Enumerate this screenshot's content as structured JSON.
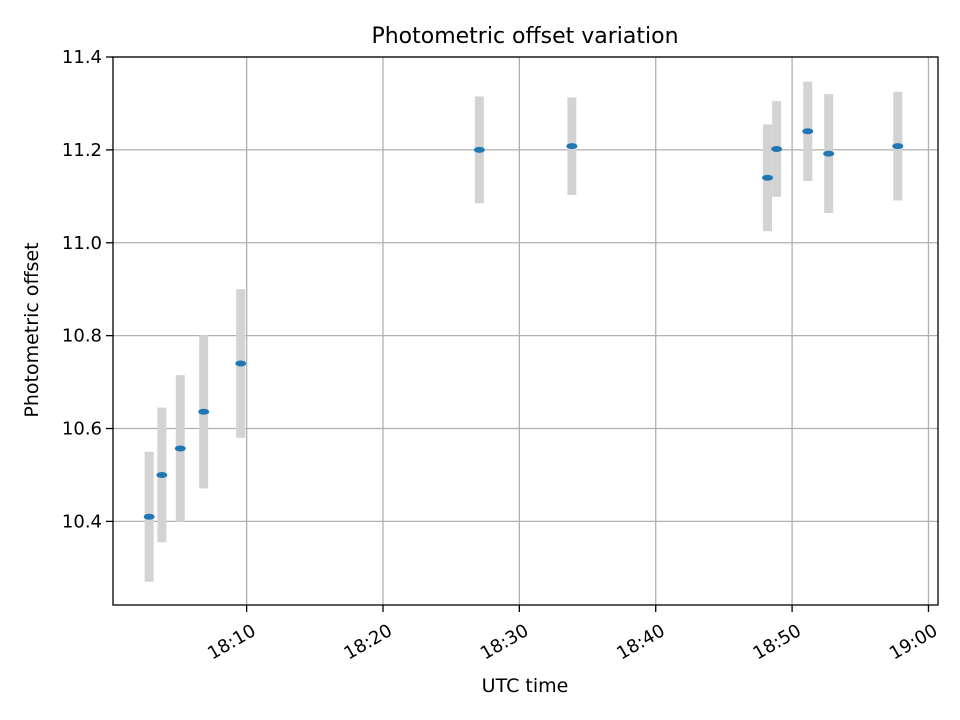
{
  "chart_data": {
    "type": "scatter",
    "title": "Photometric offset variation",
    "xlabel": "UTC time",
    "ylabel": "Photometric offset",
    "xlim": [
      "18:00:12",
      "19:00:42"
    ],
    "ylim": [
      10.22,
      11.4
    ],
    "x_ticks": [
      "18:10",
      "18:20",
      "18:30",
      "18:40",
      "18:50",
      "19:00"
    ],
    "y_ticks": [
      10.4,
      10.6,
      10.8,
      11.0,
      11.2,
      11.4
    ],
    "grid": true,
    "legend": "none",
    "colors": {
      "point": "#1f77b4",
      "errorbar": "#d3d3d3",
      "grid": "#b0b0b0",
      "axis": "#000000"
    },
    "points": [
      {
        "t": "18:02:51",
        "y": 10.41,
        "err": 0.14
      },
      {
        "t": "18:03:47",
        "y": 10.5,
        "err": 0.145
      },
      {
        "t": "18:05:08",
        "y": 10.557,
        "err": 0.158
      },
      {
        "t": "18:06:51",
        "y": 10.636,
        "err": 0.165
      },
      {
        "t": "18:09:34",
        "y": 10.74,
        "err": 0.16
      },
      {
        "t": "18:27:04",
        "y": 11.2,
        "err": 0.115
      },
      {
        "t": "18:33:51",
        "y": 11.208,
        "err": 0.105
      },
      {
        "t": "18:48:12",
        "y": 11.14,
        "err": 0.115
      },
      {
        "t": "18:48:52",
        "y": 11.202,
        "err": 0.103
      },
      {
        "t": "18:51:09",
        "y": 11.24,
        "err": 0.107
      },
      {
        "t": "18:52:41",
        "y": 11.192,
        "err": 0.128
      },
      {
        "t": "18:57:45",
        "y": 11.208,
        "err": 0.117
      }
    ]
  }
}
